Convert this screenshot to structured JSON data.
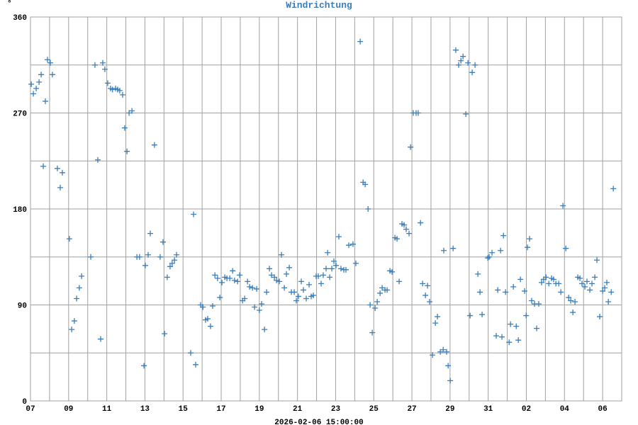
{
  "chart_data": {
    "type": "scatter",
    "title": "Windrichtung",
    "y_label": "°",
    "x_label": "2026-02-06 15:00:00",
    "color": "#3a7cb8",
    "grid": true,
    "xlim": [
      0,
      31
    ],
    "ylim": [
      0,
      360
    ],
    "xticks": [
      {
        "value": 0,
        "label": "07"
      },
      {
        "value": 2,
        "label": "09"
      },
      {
        "value": 4,
        "label": "11"
      },
      {
        "value": 6,
        "label": "13"
      },
      {
        "value": 8,
        "label": "15"
      },
      {
        "value": 10,
        "label": "17"
      },
      {
        "value": 12,
        "label": "19"
      },
      {
        "value": 14,
        "label": "21"
      },
      {
        "value": 16,
        "label": "23"
      },
      {
        "value": 18,
        "label": "25"
      },
      {
        "value": 20,
        "label": "27"
      },
      {
        "value": 22,
        "label": "29"
      },
      {
        "value": 24,
        "label": "31"
      },
      {
        "value": 26,
        "label": "02"
      },
      {
        "value": 28,
        "label": "04"
      },
      {
        "value": 30,
        "label": "06"
      }
    ],
    "x_minor_ticks": [
      1,
      3,
      5,
      7,
      9,
      11,
      13,
      15,
      17,
      19,
      21,
      23,
      25,
      27,
      29
    ],
    "yticks": [
      0,
      90,
      180,
      270,
      360
    ],
    "y_minor_ticks": [
      45,
      135,
      225,
      315
    ],
    "x": [
      0.04,
      0.15,
      0.3,
      0.45,
      0.56,
      0.67,
      0.78,
      0.89,
      1.04,
      1.15,
      1.41,
      1.56,
      1.67,
      2.04,
      2.16,
      2.3,
      2.42,
      2.56,
      2.68,
      3.16,
      3.38,
      3.53,
      3.68,
      3.79,
      3.9,
      4.05,
      4.2,
      4.3,
      4.46,
      4.57,
      4.68,
      4.83,
      4.94,
      5.06,
      5.17,
      5.32,
      5.58,
      5.72,
      5.95,
      6.02,
      6.17,
      6.28,
      6.5,
      6.8,
      6.95,
      7.03,
      7.17,
      7.32,
      7.43,
      7.55,
      7.66,
      8.4,
      8.55,
      8.66,
      8.92,
      9.04,
      9.18,
      9.29,
      9.44,
      9.55,
      9.67,
      9.81,
      9.93,
      10.04,
      10.19,
      10.3,
      10.45,
      10.6,
      10.7,
      10.86,
      10.97,
      11.12,
      11.23,
      11.38,
      11.49,
      11.64,
      11.75,
      11.86,
      12.0,
      12.12,
      12.27,
      12.38,
      12.53,
      12.64,
      12.79,
      12.9,
      13.05,
      13.16,
      13.31,
      13.42,
      13.57,
      13.68,
      13.83,
      13.94,
      14.05,
      14.2,
      14.31,
      14.46,
      14.61,
      14.72,
      14.83,
      14.98,
      15.09,
      15.24,
      15.35,
      15.5,
      15.58,
      15.69,
      15.8,
      15.91,
      16.02,
      16.17,
      16.28,
      16.43,
      16.54,
      16.69,
      16.91,
      17.06,
      17.29,
      17.44,
      17.55,
      17.7,
      17.81,
      17.92,
      18.07,
      18.18,
      18.33,
      18.44,
      18.59,
      18.7,
      18.85,
      18.96,
      19.11,
      19.22,
      19.33,
      19.48,
      19.59,
      19.7,
      19.85,
      19.93,
      20.07,
      20.22,
      20.33,
      20.45,
      20.56,
      20.71,
      20.82,
      20.93,
      21.08,
      21.23,
      21.34,
      21.49,
      21.64,
      21.67,
      21.82,
      21.9,
      22.01,
      22.16,
      22.3,
      22.45,
      22.57,
      22.68,
      22.83,
      22.94,
      23.05,
      23.16,
      23.31,
      23.46,
      23.57,
      23.68,
      23.98,
      24.05,
      24.2,
      24.42,
      24.5,
      24.65,
      24.72,
      24.8,
      24.91,
      25.1,
      25.17,
      25.32,
      25.47,
      25.58,
      25.69,
      25.91,
      25.99,
      26.06,
      26.17,
      26.28,
      26.43,
      26.54,
      26.65,
      26.8,
      26.91,
      27.03,
      27.18,
      27.32,
      27.43,
      27.55,
      27.7,
      27.81,
      27.92,
      28.07,
      28.22,
      28.33,
      28.44,
      28.55,
      28.7,
      28.81,
      28.92,
      29.07,
      29.18,
      29.33,
      29.44,
      29.59,
      29.7,
      29.85,
      30.0,
      30.11,
      30.22,
      30.3,
      30.45,
      30.56
    ],
    "values": [
      297,
      288,
      293,
      299,
      306,
      220,
      281,
      320,
      317,
      306,
      218,
      200,
      214,
      152,
      67,
      75,
      96,
      106,
      117,
      135,
      315,
      226,
      58,
      317,
      311,
      298,
      293,
      292,
      293,
      292,
      291,
      287,
      256,
      234,
      270,
      272,
      135,
      135,
      33,
      127,
      137,
      157,
      240,
      135,
      149,
      63,
      116,
      126,
      129,
      132,
      137,
      45,
      175,
      34,
      90,
      88,
      76,
      77,
      70,
      89,
      118,
      115,
      97,
      111,
      116,
      115,
      115,
      122,
      113,
      112,
      118,
      94,
      96,
      112,
      107,
      106,
      88,
      105,
      85,
      91,
      67,
      102,
      124,
      118,
      116,
      113,
      112,
      137,
      106,
      119,
      125,
      102,
      102,
      94,
      98,
      112,
      104,
      96,
      109,
      98,
      99,
      117,
      117,
      110,
      118,
      124,
      139,
      116,
      124,
      131,
      127,
      154,
      124,
      123,
      123,
      146,
      147,
      129,
      337,
      205,
      203,
      180,
      90,
      64,
      87,
      93,
      101,
      106,
      104,
      104,
      122,
      121,
      153,
      152,
      112,
      166,
      165,
      161,
      157,
      238,
      270,
      270,
      270,
      167,
      110,
      99,
      108,
      93,
      43,
      73,
      79,
      46,
      48,
      141,
      46,
      33,
      19,
      143,
      329,
      315,
      319,
      323,
      269,
      317,
      80,
      308,
      315,
      119,
      102,
      81,
      134,
      135,
      139,
      61,
      104,
      141,
      60,
      155,
      102,
      55,
      72,
      107,
      70,
      57,
      114,
      103,
      80,
      144,
      152,
      94,
      91,
      68,
      91,
      111,
      114,
      116,
      110,
      115,
      114,
      110,
      110,
      102,
      183,
      143,
      97,
      94,
      83,
      93,
      116,
      115,
      110,
      107,
      112,
      104,
      110,
      116,
      132,
      79,
      103,
      106,
      111,
      93,
      102,
      199
    ]
  }
}
